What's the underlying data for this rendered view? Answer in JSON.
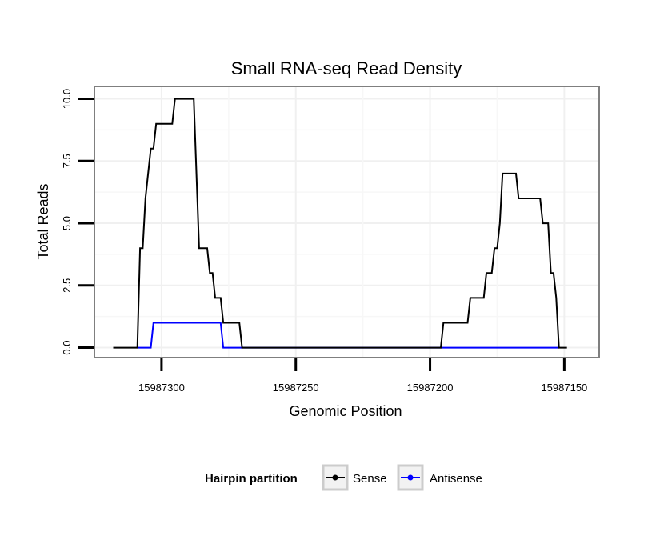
{
  "chart_data": {
    "type": "line",
    "title": "Small RNA-seq Read Density",
    "xlabel": "Genomic Position",
    "ylabel": "Total Reads",
    "xlim": [
      15987325,
      15987137
    ],
    "ylim": [
      -0.4,
      10.5
    ],
    "x_reversed": true,
    "x_ticks": [
      15987300,
      15987250,
      15987200,
      15987150
    ],
    "x_tick_labels": [
      "15987300",
      "15987250",
      "15987200",
      "15987150"
    ],
    "y_ticks": [
      0,
      2.5,
      5,
      7.5,
      10
    ],
    "y_tick_labels": [
      "0.0",
      "2.5",
      "5.0",
      "7.5",
      "10.0"
    ],
    "grid": true,
    "legend": {
      "title": "Hairpin partition",
      "position": "bottom",
      "entries": [
        "Sense",
        "Antisense"
      ]
    },
    "series": [
      {
        "name": "Sense",
        "color": "#000000",
        "points": [
          [
            15987318,
            0
          ],
          [
            15987309,
            0
          ],
          [
            15987308,
            4
          ],
          [
            15987307,
            4
          ],
          [
            15987306,
            6
          ],
          [
            15987304,
            8
          ],
          [
            15987303,
            8
          ],
          [
            15987302,
            9
          ],
          [
            15987296,
            9
          ],
          [
            15987295,
            10
          ],
          [
            15987288,
            10
          ],
          [
            15987286,
            4
          ],
          [
            15987283,
            4
          ],
          [
            15987282,
            3
          ],
          [
            15987281,
            3
          ],
          [
            15987280,
            2
          ],
          [
            15987278,
            2
          ],
          [
            15987277,
            1
          ],
          [
            15987271,
            1
          ],
          [
            15987270,
            0
          ],
          [
            15987196,
            0
          ],
          [
            15987195,
            1
          ],
          [
            15987186,
            1
          ],
          [
            15987185,
            2
          ],
          [
            15987180,
            2
          ],
          [
            15987179,
            3
          ],
          [
            15987177,
            3
          ],
          [
            15987176,
            4
          ],
          [
            15987175,
            4
          ],
          [
            15987174,
            5
          ],
          [
            15987173,
            7
          ],
          [
            15987168,
            7
          ],
          [
            15987167,
            6
          ],
          [
            15987159,
            6
          ],
          [
            15987158,
            5
          ],
          [
            15987156,
            5
          ],
          [
            15987155,
            3
          ],
          [
            15987154,
            3
          ],
          [
            15987153,
            2
          ],
          [
            15987152,
            0
          ],
          [
            15987149,
            0
          ]
        ]
      },
      {
        "name": "Antisense",
        "color": "#0000ff",
        "points": [
          [
            15987309,
            0
          ],
          [
            15987304,
            0
          ],
          [
            15987303,
            1
          ],
          [
            15987278,
            1
          ],
          [
            15987277,
            0
          ],
          [
            15987195,
            0
          ],
          [
            15987152,
            0
          ]
        ]
      }
    ]
  }
}
